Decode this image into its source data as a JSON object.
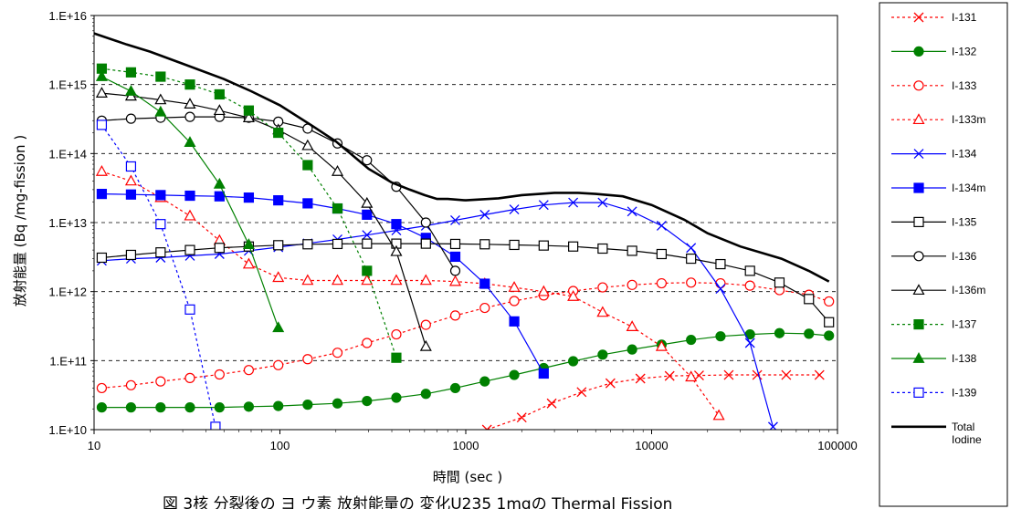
{
  "chart_data": {
    "type": "line",
    "xscale": "log",
    "yscale": "log",
    "xlim": [
      10,
      100000
    ],
    "ylim": [
      10000000000.0,
      1e+16
    ],
    "xlabel": "時間 (sec )",
    "ylabel": "放射能量 (Bq /mg-fission )",
    "caption": "図 3核 分裂後の ヨ ウ素 放射能量の 変化U235 1mgの Thermal Fission",
    "x_ticks": [
      "10",
      "100",
      "1000",
      "10000",
      "100000"
    ],
    "y_ticks": [
      "1.E+10",
      "1.E+11",
      "1.E+12",
      "1.E+13",
      "1.E+14",
      "1.E+15",
      "1.E+16"
    ],
    "grid": "horizontal dashed",
    "legend_position": "right",
    "series": [
      {
        "name": "I-131",
        "color": "#ff0000",
        "dash": "dotted",
        "marker": "x",
        "filled": false,
        "x": [
          1300,
          2000,
          2900,
          4200,
          6000,
          8700,
          12500,
          18000,
          26000,
          37000,
          53000,
          80000
        ],
        "y": [
          10000000000.0,
          15000000000.0,
          24000000000.0,
          35000000000.0,
          47000000000.0,
          55000000000.0,
          60000000000.0,
          61000000000.0,
          62000000000.0,
          62000000000.0,
          62000000000.0,
          62000000000.0
        ]
      },
      {
        "name": "I-132",
        "color": "#008000",
        "dash": "solid",
        "marker": "circle",
        "filled": true,
        "x": [
          11,
          15.8,
          22.8,
          32.8,
          47.3,
          68,
          98,
          141,
          204,
          294,
          423,
          610,
          878,
          1265,
          1823,
          2626,
          3784,
          5451,
          7853,
          11314,
          16300,
          23481,
          33828,
          48734,
          70210,
          90000
        ],
        "y": [
          21000000000.0,
          21000000000.0,
          21000000000.0,
          21000000000.0,
          21000000000.0,
          21500000000.0,
          22000000000.0,
          23000000000.0,
          24000000000.0,
          26000000000.0,
          29000000000.0,
          33000000000.0,
          40000000000.0,
          50000000000.0,
          62000000000.0,
          78000000000.0,
          98000000000.0,
          122000000000.0,
          145000000000.0,
          170000000000.0,
          200000000000.0,
          225000000000.0,
          240000000000.0,
          250000000000.0,
          245000000000.0,
          230000000000.0
        ]
      },
      {
        "name": "I-133",
        "color": "#ff0000",
        "dash": "dotted",
        "marker": "circle",
        "filled": false,
        "x": [
          11,
          15.8,
          22.8,
          32.8,
          47.3,
          68,
          98,
          141,
          204,
          294,
          423,
          610,
          878,
          1265,
          1823,
          2626,
          3784,
          5451,
          7853,
          11314,
          16300,
          23481,
          33828,
          48734,
          70210,
          90000
        ],
        "y": [
          40000000000.0,
          44000000000.0,
          50000000000.0,
          56000000000.0,
          63000000000.0,
          73000000000.0,
          86000000000.0,
          105000000000.0,
          130000000000.0,
          180000000000.0,
          240000000000.0,
          330000000000.0,
          450000000000.0,
          580000000000.0,
          730000000000.0,
          880000000000.0,
          1020000000000.0,
          1150000000000.0,
          1250000000000.0,
          1320000000000.0,
          1350000000000.0,
          1320000000000.0,
          1220000000000.0,
          1050000000000.0,
          900000000000.0,
          720000000000.0
        ]
      },
      {
        "name": "I-133m",
        "color": "#ff0000",
        "dash": "dotted",
        "marker": "triangle",
        "filled": false,
        "x": [
          11,
          15.8,
          22.8,
          32.8,
          47.3,
          68,
          98,
          141,
          204,
          294,
          423,
          610,
          878,
          1265,
          1823,
          2626,
          3784,
          5451,
          7853,
          11314,
          16300,
          23000
        ],
        "y": [
          55000000000000.0,
          40000000000000.0,
          23000000000000.0,
          12500000000000.0,
          5500000000000.0,
          2500000000000.0,
          1600000000000.0,
          1450000000000.0,
          1450000000000.0,
          1450000000000.0,
          1450000000000.0,
          1450000000000.0,
          1400000000000.0,
          1300000000000.0,
          1150000000000.0,
          1000000000000.0,
          850000000000.0,
          500000000000.0,
          310000000000.0,
          160000000000.0,
          58000000000.0,
          16000000000.0
        ]
      },
      {
        "name": "I-134",
        "color": "#0000ff",
        "dash": "solid",
        "marker": "x",
        "filled": false,
        "x": [
          11,
          15.8,
          22.8,
          32.8,
          47.3,
          68,
          98,
          141,
          204,
          294,
          423,
          610,
          878,
          1265,
          1823,
          2626,
          3784,
          5451,
          7853,
          11314,
          16300,
          23481,
          33828,
          45000
        ],
        "y": [
          2800000000000.0,
          3000000000000.0,
          3100000000000.0,
          3300000000000.0,
          3500000000000.0,
          3900000000000.0,
          4400000000000.0,
          5000000000000.0,
          5700000000000.0,
          6600000000000.0,
          7700000000000.0,
          9000000000000.0,
          10800000000000.0,
          13000000000000.0,
          15500000000000.0,
          18000000000000.0,
          19500000000000.0,
          19500000000000.0,
          14500000000000.0,
          9000000000000.0,
          4300000000000.0,
          1100000000000.0,
          180000000000.0,
          11000000000.0
        ]
      },
      {
        "name": "I-134m",
        "color": "#0000ff",
        "dash": "solid",
        "marker": "square",
        "filled": true,
        "x": [
          11,
          15.8,
          22.8,
          32.8,
          47.3,
          68,
          98,
          141,
          204,
          294,
          423,
          610,
          878,
          1265,
          1823,
          2626
        ],
        "y": [
          26000000000000.0,
          25500000000000.0,
          25000000000000.0,
          24500000000000.0,
          24000000000000.0,
          23000000000000.0,
          21000000000000.0,
          19000000000000.0,
          16000000000000.0,
          13000000000000.0,
          9500000000000.0,
          6000000000000.0,
          3200000000000.0,
          1300000000000.0,
          370000000000.0,
          65000000000.0
        ]
      },
      {
        "name": "I-135",
        "color": "#000000",
        "dash": "solid",
        "marker": "square",
        "filled": false,
        "x": [
          11,
          15.8,
          22.8,
          32.8,
          47.3,
          68,
          98,
          141,
          204,
          294,
          423,
          610,
          878,
          1265,
          1823,
          2626,
          3784,
          5451,
          7853,
          11314,
          16300,
          23481,
          33828,
          48734,
          70210,
          90000
        ],
        "y": [
          3100000000000.0,
          3400000000000.0,
          3700000000000.0,
          4000000000000.0,
          4300000000000.0,
          4500000000000.0,
          4700000000000.0,
          4850000000000.0,
          4900000000000.0,
          4950000000000.0,
          4950000000000.0,
          4950000000000.0,
          4900000000000.0,
          4850000000000.0,
          4750000000000.0,
          4650000000000.0,
          4500000000000.0,
          4200000000000.0,
          3900000000000.0,
          3500000000000.0,
          3000000000000.0,
          2500000000000.0,
          2000000000000.0,
          1350000000000.0,
          780000000000.0,
          360000000000.0
        ]
      },
      {
        "name": "I-136",
        "color": "#000000",
        "dash": "solid",
        "marker": "circle",
        "filled": false,
        "x": [
          11,
          15.8,
          22.8,
          32.8,
          47.3,
          68,
          98,
          141,
          204,
          294,
          423,
          610,
          878
        ],
        "y": [
          300000000000000.0,
          320000000000000.0,
          330000000000000.0,
          340000000000000.0,
          340000000000000.0,
          330000000000000.0,
          290000000000000.0,
          230000000000000.0,
          140000000000000.0,
          80000000000000.0,
          33000000000000.0,
          10000000000000.0,
          2000000000000.0
        ]
      },
      {
        "name": "I-136m",
        "color": "#000000",
        "dash": "solid",
        "marker": "triangle",
        "filled": false,
        "x": [
          11,
          15.8,
          22.8,
          32.8,
          47.3,
          68,
          98,
          141,
          204,
          294,
          423,
          610
        ],
        "y": [
          750000000000000.0,
          680000000000000.0,
          600000000000000.0,
          520000000000000.0,
          420000000000000.0,
          330000000000000.0,
          220000000000000.0,
          130000000000000.0,
          55000000000000.0,
          19000000000000.0,
          3800000000000.0,
          160000000000.0
        ]
      },
      {
        "name": "I-137",
        "color": "#008000",
        "dash": "dotted",
        "marker": "square",
        "filled": true,
        "x": [
          11,
          15.8,
          22.8,
          32.8,
          47.3,
          68,
          98,
          141,
          204,
          294,
          423
        ],
        "y": [
          1700000000000000.0,
          1500000000000000.0,
          1300000000000000.0,
          1000000000000000.0,
          720000000000000.0,
          420000000000000.0,
          200000000000000.0,
          68000000000000.0,
          16000000000000.0,
          2000000000000.0,
          110000000000.0
        ]
      },
      {
        "name": "I-138",
        "color": "#008000",
        "dash": "solid",
        "marker": "triangle",
        "filled": true,
        "x": [
          11,
          15.8,
          22.8,
          32.8,
          47.3,
          68,
          98
        ],
        "y": [
          1300000000000000.0,
          800000000000000.0,
          400000000000000.0,
          145000000000000.0,
          36000000000000.0,
          4800000000000.0,
          300000000000.0
        ]
      },
      {
        "name": "I-139",
        "color": "#0000ff",
        "dash": "dotted",
        "marker": "square",
        "filled": false,
        "x": [
          11,
          15.8,
          22.8,
          32.8,
          45
        ],
        "y": [
          260000000000000.0,
          65000000000000.0,
          9500000000000.0,
          550000000000.0,
          11000000000.0
        ]
      },
      {
        "name": "Total Iodine",
        "color": "#000000",
        "dash": "solid",
        "marker": "none",
        "filled": false,
        "x": [
          10,
          15,
          20,
          30,
          50,
          70,
          100,
          150,
          200,
          300,
          400,
          500,
          600,
          700,
          800,
          1000,
          1500,
          2000,
          3000,
          4000,
          5000,
          7000,
          10000,
          15000,
          20000,
          30000,
          50000,
          70000,
          90000
        ],
        "y": [
          5500000000000000.0,
          3800000000000000.0,
          3000000000000000.0,
          2000000000000000.0,
          1200000000000000.0,
          800000000000000.0,
          500000000000000.0,
          250000000000000.0,
          150000000000000.0,
          60000000000000.0,
          38000000000000.0,
          30000000000000.0,
          25000000000000.0,
          22000000000000.0,
          22000000000000.0,
          21000000000000.0,
          22500000000000.0,
          25000000000000.0,
          27000000000000.0,
          27000000000000.0,
          26000000000000.0,
          24000000000000.0,
          18000000000000.0,
          11000000000000.0,
          7000000000000.0,
          4500000000000.0,
          3000000000000.0,
          2000000000000.0,
          1400000000000.0
        ]
      }
    ]
  }
}
